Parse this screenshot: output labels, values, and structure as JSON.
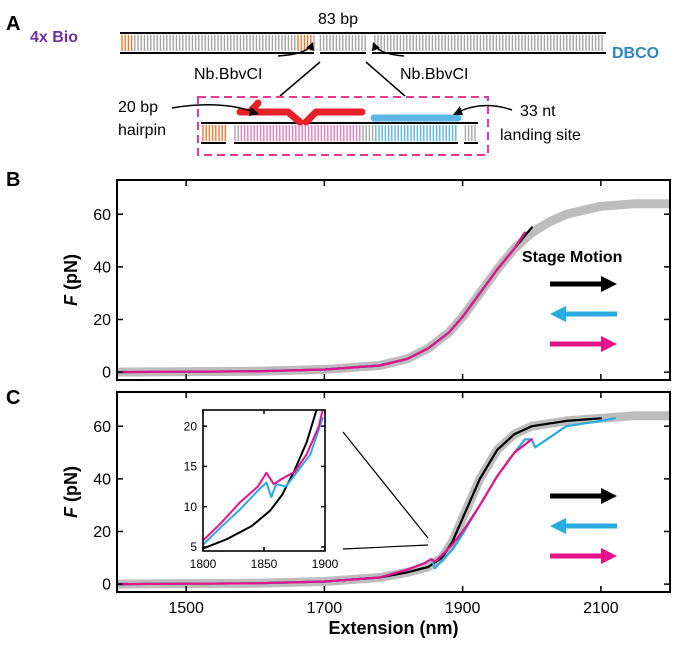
{
  "panel_labels": {
    "a": "A",
    "b": "B",
    "c": "C"
  },
  "schematic": {
    "label_4xbio": "4x Bio",
    "label_dbco": "DBCO",
    "label_83bp": "83 bp",
    "label_nick_left": "Nb.BbvCI",
    "label_nick_right": "Nb.BbvCI",
    "label_hairpin_1": "20 bp",
    "label_hairpin_2": "hairpin",
    "label_landing_1": "33 nt",
    "label_landing_2": "landing site",
    "colors": {
      "bio": "#7030a0",
      "dbco": "#2e86c1",
      "orange": "#f0782c",
      "gray": "#a6a6a6",
      "pink": "#e37cbf",
      "red": "#e8202a",
      "blue": "#5db4e6",
      "box": "#e8388f"
    }
  },
  "panel_b": {
    "stage_motion": "Stage Motion"
  },
  "colors": {
    "black": "#000000",
    "cyan": "#29abe2",
    "magenta": "#e6128c",
    "gray": "#bdbdbd"
  },
  "chart_data": [
    {
      "type": "line",
      "panel": "B",
      "ylabel": "F (pN)",
      "xlim": [
        1400,
        2200
      ],
      "ylim": [
        -3,
        73
      ],
      "xticks": [
        1500,
        1700,
        1900,
        2100
      ],
      "yticks": [
        0,
        20,
        40,
        60
      ],
      "annotation": "Stage Motion",
      "series": [
        {
          "color": "gray",
          "x": [
            1400,
            1600,
            1700,
            1780,
            1820,
            1850,
            1880,
            1900,
            1925,
            1950,
            1975,
            2000,
            2025,
            2050,
            2100,
            2150,
            2200
          ],
          "y": [
            0,
            0.3,
            1,
            2.5,
            5,
            9,
            15,
            21,
            30,
            39,
            47,
            53,
            57,
            60,
            63,
            64,
            64
          ]
        },
        {
          "color": "black",
          "x": [
            1400,
            1600,
            1700,
            1780,
            1820,
            1850,
            1880,
            1900,
            1925,
            1950,
            1975,
            2000
          ],
          "y": [
            0,
            0.3,
            1,
            2.5,
            5,
            9,
            15,
            21,
            30,
            39,
            47,
            55
          ]
        },
        {
          "color": "cyan",
          "x": [
            1400,
            1600,
            1700,
            1780,
            1820,
            1850,
            1880,
            1900,
            1925,
            1950,
            1975,
            1990
          ],
          "y": [
            0,
            0.3,
            1,
            2.5,
            5,
            9,
            15,
            21,
            30,
            39,
            47,
            53
          ]
        },
        {
          "color": "magenta",
          "x": [
            1400,
            1600,
            1700,
            1780,
            1820,
            1850,
            1880,
            1900,
            1925,
            1950,
            1975,
            1990
          ],
          "y": [
            0,
            0.3,
            1,
            2.5,
            5,
            9,
            15,
            21,
            30,
            39,
            47,
            53
          ]
        }
      ]
    },
    {
      "type": "line",
      "panel": "C",
      "xlabel": "Extension (nm)",
      "ylabel": "F (pN)",
      "xlim": [
        1400,
        2200
      ],
      "ylim": [
        -3,
        73
      ],
      "xticks": [
        1500,
        1700,
        1900,
        2100
      ],
      "yticks": [
        0,
        20,
        40,
        60
      ],
      "series": [
        {
          "color": "gray",
          "x": [
            1400,
            1600,
            1700,
            1780,
            1820,
            1850,
            1870,
            1885,
            1900,
            1925,
            1950,
            1975,
            2000,
            2050,
            2100,
            2150,
            2200
          ],
          "y": [
            0,
            0.3,
            1,
            2.5,
            4.5,
            6.5,
            10,
            16,
            25,
            40,
            51,
            57,
            60,
            62,
            63,
            64,
            64
          ]
        },
        {
          "color": "black",
          "x": [
            1400,
            1600,
            1700,
            1780,
            1820,
            1850,
            1870,
            1885,
            1900,
            1925,
            1950,
            1975,
            2000,
            2050,
            2100
          ],
          "y": [
            0,
            0.3,
            1,
            2.5,
            4.5,
            6.5,
            10,
            16,
            25,
            40,
            51,
            57,
            60,
            62,
            63
          ]
        },
        {
          "color": "cyan",
          "x": [
            1400,
            1600,
            1700,
            1780,
            1820,
            1845,
            1855,
            1860,
            1870,
            1885,
            1900,
            1925,
            1950,
            1975,
            1990,
            2000,
            2005,
            2050,
            2100,
            2120
          ],
          "y": [
            0,
            0.3,
            1,
            2.5,
            5.5,
            8,
            9.5,
            6,
            9,
            13,
            19,
            30,
            41,
            50,
            55,
            55,
            52,
            60,
            62,
            63
          ]
        },
        {
          "color": "magenta",
          "x": [
            1400,
            1600,
            1700,
            1780,
            1820,
            1845,
            1855,
            1860,
            1870,
            1885,
            1900,
            1925,
            1950,
            1975,
            2000
          ],
          "y": [
            0,
            0.3,
            1,
            2.5,
            5.5,
            8,
            9.5,
            8.5,
            11,
            15,
            20,
            30,
            41,
            50,
            55
          ]
        }
      ]
    },
    {
      "type": "line",
      "panel": "C-inset",
      "xlim": [
        1800,
        1900
      ],
      "ylim": [
        4.5,
        22
      ],
      "xticks": [
        1800,
        1850,
        1900
      ],
      "yticks": [
        5,
        10,
        15,
        20
      ],
      "series": [
        {
          "color": "black",
          "x": [
            1800,
            1820,
            1840,
            1855,
            1865,
            1875,
            1885,
            1893
          ],
          "y": [
            4.8,
            6,
            7.6,
            9.5,
            11.5,
            14.5,
            18,
            22
          ]
        },
        {
          "color": "cyan",
          "x": [
            1800,
            1815,
            1830,
            1845,
            1852,
            1856,
            1860,
            1868,
            1878,
            1888,
            1898
          ],
          "y": [
            5.3,
            7.5,
            9.6,
            12,
            13,
            11.2,
            12.8,
            12.5,
            14.5,
            16.5,
            21
          ]
        },
        {
          "color": "magenta",
          "x": [
            1800,
            1815,
            1830,
            1845,
            1852,
            1858,
            1865,
            1875,
            1885,
            1895,
            1898
          ],
          "y": [
            5.8,
            8,
            10.5,
            12.5,
            14.2,
            12.8,
            13.5,
            14.3,
            16.5,
            20,
            22
          ]
        }
      ]
    }
  ]
}
